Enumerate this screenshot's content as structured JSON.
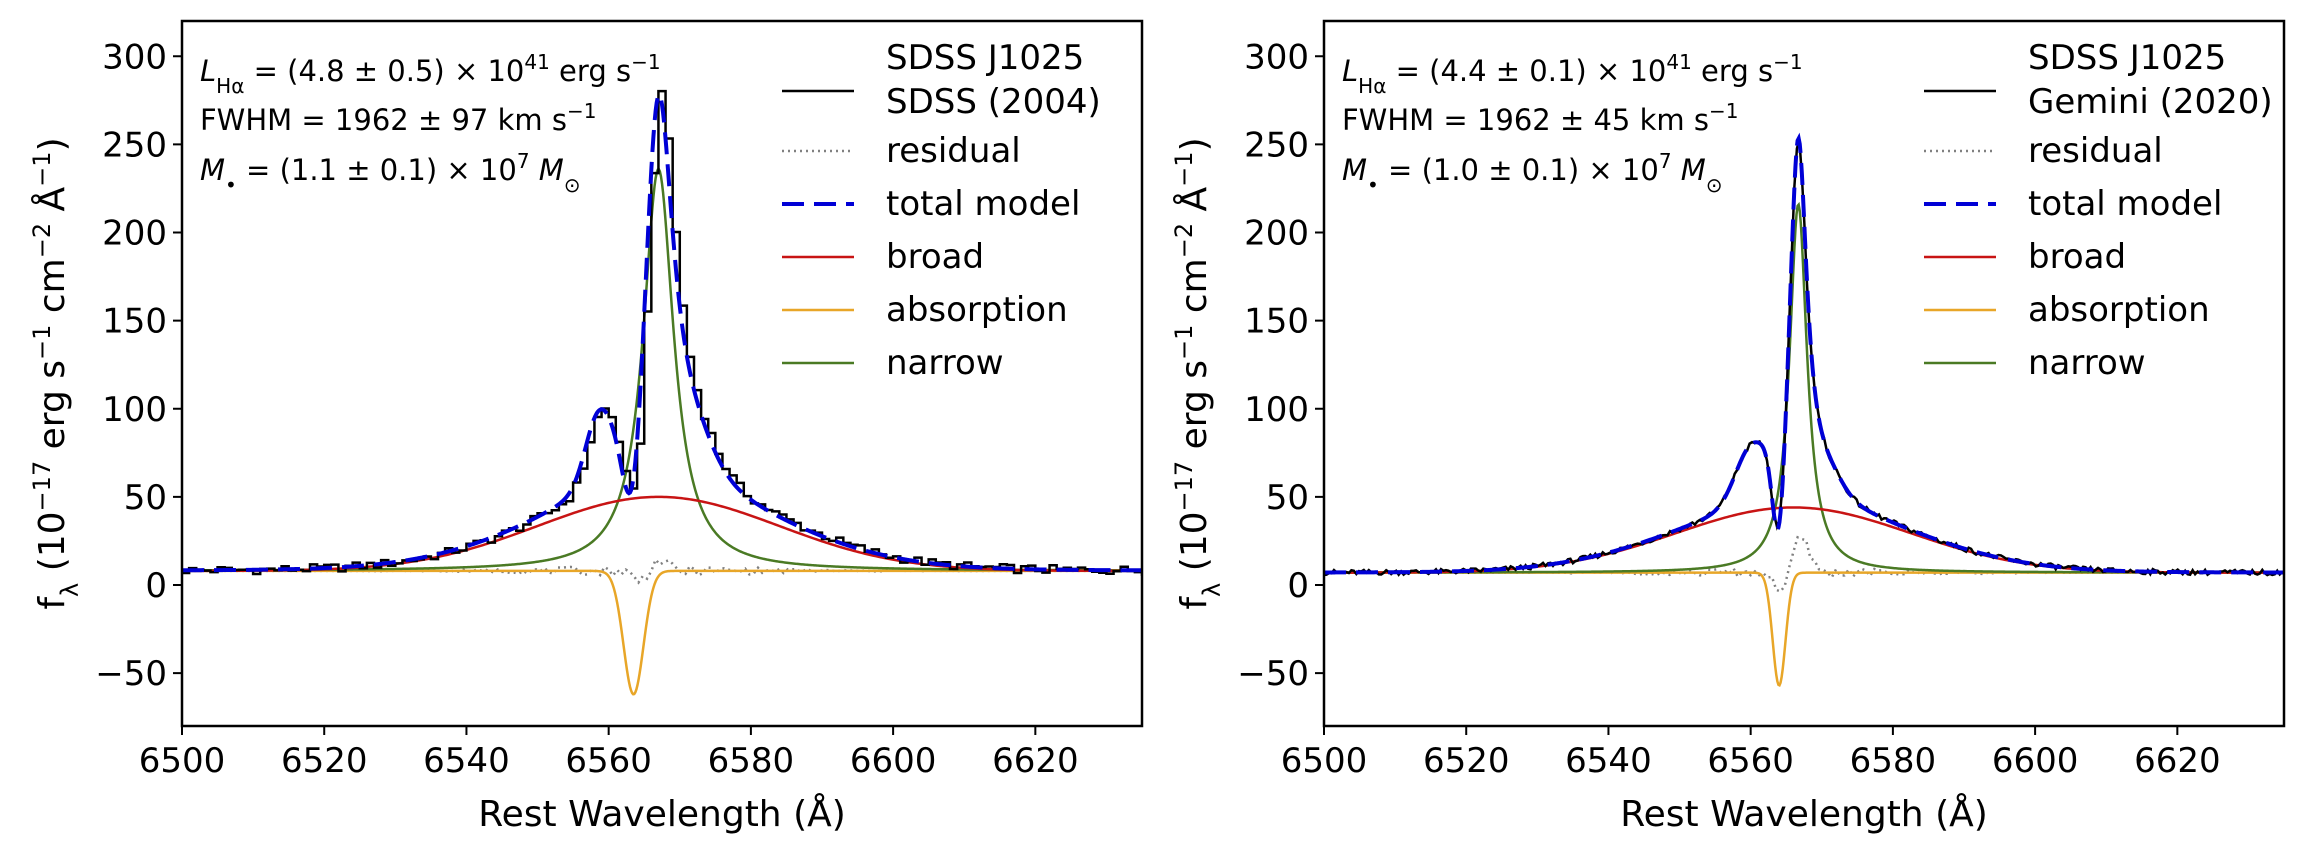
{
  "chart_data": [
    {
      "type": "line",
      "xlabel": "Rest Wavelength (Å)",
      "ylabel": "f_λ (10^-17 erg s^-1 cm^-2 Å^-1)",
      "ylabel_parts": {
        "fsym": "f",
        "fsub": "λ",
        "unit1": " (10",
        "exp1": "−17",
        "unit2": " erg s",
        "exp2": "−1",
        "unit3": " cm",
        "exp3": "−2",
        "unit4": " Å",
        "exp4": "−1",
        "unit5": ")"
      },
      "xlim": [
        6500,
        6635
      ],
      "ylim": [
        -80,
        320
      ],
      "xticks": [
        6500,
        6520,
        6540,
        6560,
        6580,
        6600,
        6620
      ],
      "yticks": [
        -50,
        0,
        50,
        100,
        150,
        200,
        250,
        300
      ],
      "ytick_labels": [
        "−50",
        "0",
        "50",
        "100",
        "150",
        "200",
        "250",
        "300"
      ],
      "annotations": {
        "lum": {
          "sym": "L",
          "sub": "Hα",
          "text": " = (4.8 ± 0.5) × 10",
          "exp": "41",
          "tail": " erg s",
          "exp2": "−1"
        },
        "fwhm": {
          "text": "FWHM = 1962 ± 97 km s",
          "exp": "−1"
        },
        "mass": {
          "sym": "M",
          "sub": "•",
          "text": " = (1.1 ± 0.1) × 10",
          "exp": "7",
          "tail": " M",
          "sub2": "⊙"
        }
      },
      "legend": {
        "position": "top-right",
        "entries": [
          {
            "key": "data",
            "label": "SDSS J1025",
            "label2": "SDSS (2004)",
            "color": "#000000",
            "style": "solid"
          },
          {
            "key": "residual",
            "label": "residual",
            "color": "#808080",
            "style": "dotted"
          },
          {
            "key": "total",
            "label": "total model",
            "color": "#0000d6",
            "style": "dashed"
          },
          {
            "key": "broad",
            "label": "broad",
            "color": "#c81414",
            "style": "solid"
          },
          {
            "key": "absorption",
            "label": "absorption",
            "color": "#e8a628",
            "style": "solid"
          },
          {
            "key": "narrow",
            "label": "narrow",
            "color": "#4a7a24",
            "style": "solid"
          }
        ]
      },
      "model": {
        "continuum": 8,
        "broad": {
          "amp": 42,
          "center": 6567,
          "sigma": 17
        },
        "narrow": {
          "amp": 228,
          "center": 6567,
          "gamma": 2.6
        },
        "absorption": {
          "amp": -70,
          "center": 6563.5,
          "sigma": 1.4
        },
        "data_style": "step",
        "data_step": 1.0,
        "blue_bump": {
          "amp": 34,
          "center": 6558.5,
          "sigma": 1.8
        },
        "red_bump": {
          "amp": 14,
          "center": 6572,
          "sigma": 2.8
        }
      }
    },
    {
      "type": "line",
      "xlabel": "Rest Wavelength (Å)",
      "ylabel": "f_λ (10^-17 erg s^-1 cm^-2 Å^-1)",
      "ylabel_parts": {
        "fsym": "f",
        "fsub": "λ",
        "unit1": " (10",
        "exp1": "−17",
        "unit2": " erg s",
        "exp2": "−1",
        "unit3": " cm",
        "exp3": "−2",
        "unit4": " Å",
        "exp4": "−1",
        "unit5": ")"
      },
      "xlim": [
        6500,
        6635
      ],
      "ylim": [
        -80,
        320
      ],
      "xticks": [
        6500,
        6520,
        6540,
        6560,
        6580,
        6600,
        6620
      ],
      "yticks": [
        -50,
        0,
        50,
        100,
        150,
        200,
        250,
        300
      ],
      "ytick_labels": [
        "−50",
        "0",
        "50",
        "100",
        "150",
        "200",
        "250",
        "300"
      ],
      "annotations": {
        "lum": {
          "sym": "L",
          "sub": "Hα",
          "text": " = (4.4 ± 0.1) × 10",
          "exp": "41",
          "tail": " erg s",
          "exp2": "−1"
        },
        "fwhm": {
          "text": "FWHM = 1962 ± 45 km s",
          "exp": "−1"
        },
        "mass": {
          "sym": "M",
          "sub": "•",
          "text": " = (1.0 ± 0.1) × 10",
          "exp": "7",
          "tail": " M",
          "sub2": "⊙"
        }
      },
      "legend": {
        "position": "top-right",
        "entries": [
          {
            "key": "data",
            "label": "SDSS J1025",
            "label2": "Gemini (2020)",
            "color": "#000000",
            "style": "solid"
          },
          {
            "key": "residual",
            "label": "residual",
            "color": "#808080",
            "style": "dotted"
          },
          {
            "key": "total",
            "label": "total model",
            "color": "#0000d6",
            "style": "dashed"
          },
          {
            "key": "broad",
            "label": "broad",
            "color": "#c81414",
            "style": "solid"
          },
          {
            "key": "absorption",
            "label": "absorption",
            "color": "#e8a628",
            "style": "solid"
          },
          {
            "key": "narrow",
            "label": "narrow",
            "color": "#4a7a24",
            "style": "solid"
          }
        ]
      },
      "model": {
        "continuum": 7,
        "broad": {
          "amp": 37,
          "center": 6566,
          "sigma": 16.5
        },
        "narrow": {
          "amp": 209,
          "center": 6566.7,
          "gamma": 1.5
        },
        "absorption": {
          "amp": -64,
          "center": 6564,
          "sigma": 0.9
        },
        "data_style": "line",
        "data_step": 0.35,
        "blue_bump": {
          "amp": 28,
          "center": 6560,
          "sigma": 2.2
        },
        "red_bump": {
          "amp": 9,
          "center": 6571,
          "sigma": 2.0
        }
      }
    }
  ]
}
